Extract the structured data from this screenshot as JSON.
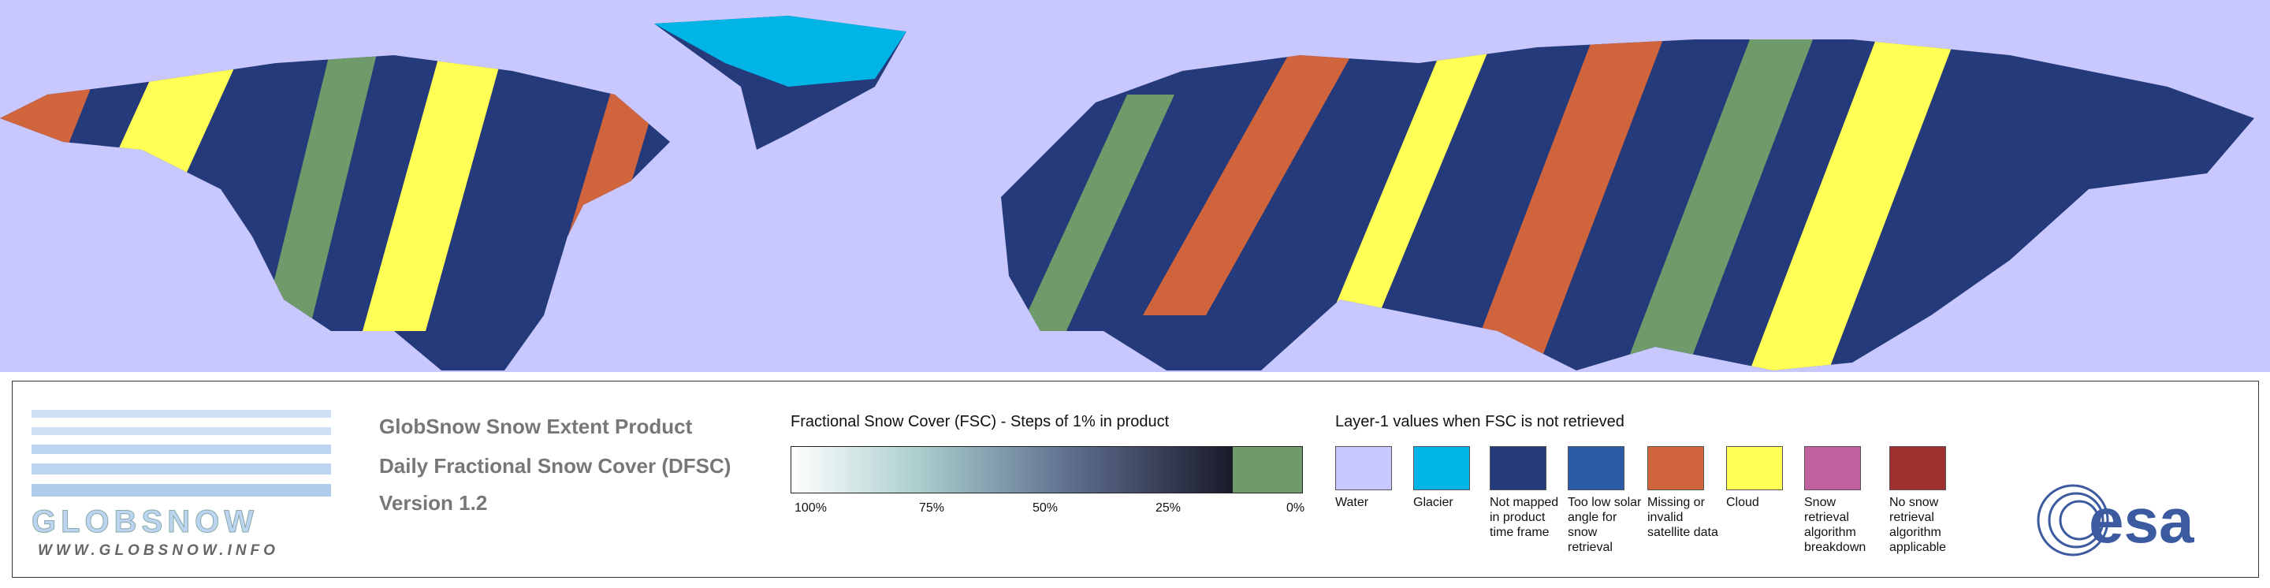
{
  "header": {
    "lines": [
      "GlobSnow Snow Extent Product",
      "Daily Fractional Snow Cover (DFSC)",
      "Version 1.2"
    ]
  },
  "logo": {
    "name": "GLOBSNOW",
    "url": "WWW.GLOBSNOW.INFO",
    "agency": "esa"
  },
  "fsc_scale": {
    "title": "Fractional Snow Cover (FSC) - Steps of 1% in product",
    "labels": [
      "100%",
      "75%",
      "50%",
      "25%",
      "0%"
    ]
  },
  "layer1": {
    "title": "Layer-1 values when FSC is not retrieved",
    "categories": [
      {
        "label": "Water",
        "color": "#c8c8ff"
      },
      {
        "label": "Glacier",
        "color": "#00b4e6"
      },
      {
        "label": "Not mapped in product time frame",
        "color": "#253a7a"
      },
      {
        "label": "Too low solar angle for snow retrieval",
        "color": "#2b5ca8"
      },
      {
        "label": "Missing or invalid satellite data",
        "color": "#d0643c"
      },
      {
        "label": "Cloud",
        "color": "#ffff55"
      },
      {
        "label": "Snow retrieval algorithm breakdown",
        "color": "#c0609c"
      },
      {
        "label": "No snow retrieval algorithm applicable",
        "color": "#a03030"
      }
    ]
  }
}
